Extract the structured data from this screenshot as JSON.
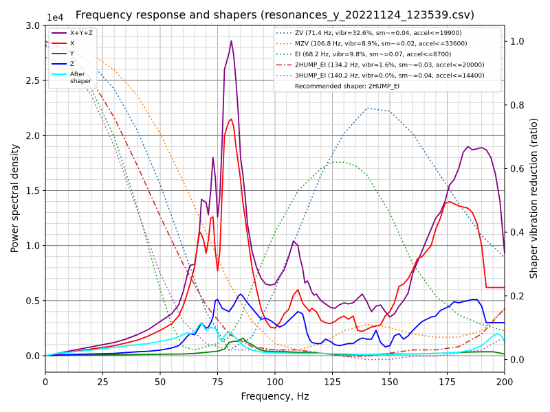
{
  "chart_data": {
    "type": "line",
    "title": "Frequency response and shapers (resonances_y_20221124_123539.csv)",
    "xlabel": "Frequency, Hz",
    "ylabel": "Power spectral density",
    "y2label": "Shaper vibration reduction (ratio)",
    "y_offset_text": "1e4",
    "xlim": [
      0,
      200
    ],
    "ylim": [
      -1500,
      30000
    ],
    "y2lim": [
      -0.04,
      1.05
    ],
    "x_ticks": [
      0,
      25,
      50,
      75,
      100,
      125,
      150,
      175,
      200
    ],
    "x_tick_labels": [
      "0",
      "25",
      "50",
      "75",
      "100",
      "125",
      "150",
      "175",
      "200"
    ],
    "y_ticks": [
      0,
      5000,
      10000,
      15000,
      20000,
      25000,
      30000
    ],
    "y_tick_labels": [
      "0.0",
      "0.5",
      "1.0",
      "1.5",
      "2.0",
      "2.5",
      "3.0"
    ],
    "y2_ticks": [
      0,
      0.2,
      0.4,
      0.6,
      0.8,
      1.0
    ],
    "y2_tick_labels": [
      "0.0",
      "0.2",
      "0.4",
      "0.6",
      "0.8",
      "1.0"
    ],
    "grid": true,
    "psd_legend_position": "upper-left",
    "shaper_legend_position": "upper-right",
    "psd_series": [
      {
        "name": "X+Y+Z",
        "color": "#800080",
        "x": [
          0,
          5,
          10,
          20,
          30,
          35,
          40,
          45,
          50,
          55,
          58,
          60,
          62,
          63,
          65,
          67,
          68,
          70,
          71,
          72,
          73,
          74,
          75,
          76,
          77,
          78,
          80,
          81,
          82,
          83,
          84,
          85,
          86,
          87,
          88,
          90,
          92,
          94,
          96,
          98,
          100,
          102,
          104,
          106,
          108,
          110,
          111,
          112,
          113,
          114,
          115,
          116,
          117,
          118,
          120,
          122,
          124,
          126,
          128,
          130,
          132,
          134,
          136,
          138,
          140,
          142,
          144,
          146,
          148,
          150,
          152,
          154,
          156,
          158,
          160,
          162,
          164,
          166,
          168,
          170,
          172,
          174,
          176,
          178,
          180,
          182,
          184,
          186,
          188,
          190,
          192,
          194,
          196,
          198,
          200
        ],
        "y": [
          0,
          200,
          400,
          800,
          1200,
          1500,
          1900,
          2400,
          3100,
          3800,
          4600,
          5800,
          7500,
          8200,
          8300,
          11000,
          14200,
          13900,
          12800,
          15000,
          18000,
          16200,
          12600,
          14500,
          19600,
          26000,
          27500,
          28600,
          27300,
          25000,
          22000,
          18000,
          16500,
          14500,
          12000,
          9500,
          8000,
          7000,
          6500,
          6400,
          6500,
          7200,
          7800,
          9000,
          10400,
          10000,
          8800,
          8000,
          6600,
          6800,
          6400,
          5800,
          5500,
          5600,
          5000,
          4700,
          4400,
          4300,
          4600,
          4800,
          4700,
          4800,
          5200,
          5600,
          4900,
          4000,
          4500,
          4600,
          4000,
          3500,
          3800,
          4500,
          5000,
          5700,
          7500,
          8500,
          9500,
          10500,
          11500,
          12500,
          13000,
          14000,
          15500,
          16000,
          17000,
          18500,
          19000,
          18700,
          18800,
          18900,
          18700,
          18000,
          16500,
          14000,
          9300
        ]
      },
      {
        "name": "X",
        "color": "#ff0000",
        "x": [
          0,
          5,
          10,
          20,
          30,
          40,
          45,
          50,
          55,
          58,
          60,
          62,
          63,
          65,
          67,
          68,
          69,
          70,
          71,
          72,
          73,
          74,
          75,
          76,
          77,
          78,
          79,
          80,
          81,
          82,
          83,
          84,
          85,
          86,
          87,
          88,
          90,
          92,
          94,
          96,
          98,
          100,
          102,
          104,
          106,
          108,
          110,
          112,
          113,
          114,
          115,
          116,
          118,
          120,
          122,
          124,
          126,
          128,
          130,
          132,
          134,
          136,
          138,
          140,
          142,
          144,
          146,
          148,
          150,
          152,
          154,
          156,
          158,
          160,
          162,
          164,
          166,
          168,
          170,
          172,
          174,
          176,
          178,
          180,
          182,
          184,
          186,
          188,
          190,
          192,
          194,
          196,
          198,
          200
        ],
        "y": [
          0,
          150,
          300,
          600,
          900,
          1400,
          1800,
          2300,
          2900,
          3600,
          4500,
          5800,
          6500,
          8100,
          11300,
          11000,
          10400,
          9300,
          10500,
          12500,
          12600,
          9500,
          7700,
          9500,
          15000,
          20000,
          20700,
          21300,
          21500,
          20800,
          19000,
          17500,
          16000,
          14000,
          12500,
          11000,
          8000,
          6000,
          4200,
          3200,
          2600,
          2500,
          3000,
          3800,
          4200,
          5500,
          6000,
          4800,
          4500,
          4300,
          4000,
          4300,
          4000,
          3200,
          3000,
          2900,
          3100,
          3400,
          3600,
          3300,
          3600,
          2300,
          2200,
          2400,
          2600,
          2700,
          2800,
          3600,
          4000,
          4800,
          6300,
          6500,
          7000,
          7800,
          8800,
          9000,
          9500,
          10000,
          11500,
          12500,
          13800,
          14000,
          13800,
          13600,
          13500,
          13400,
          13000,
          12000,
          10000,
          6200,
          6200,
          6200,
          6200,
          6200
        ]
      },
      {
        "name": "Y",
        "color": "#008000",
        "x": [
          0,
          20,
          40,
          60,
          65,
          70,
          75,
          78,
          80,
          82,
          84,
          86,
          88,
          90,
          92,
          94,
          96,
          98,
          100,
          105,
          110,
          115,
          120,
          125,
          130,
          140,
          150,
          160,
          170,
          180,
          190,
          195,
          200
        ],
        "y": [
          0,
          50,
          100,
          150,
          200,
          300,
          400,
          600,
          1200,
          1300,
          1300,
          1600,
          1200,
          1000,
          700,
          500,
          400,
          400,
          350,
          350,
          300,
          300,
          200,
          150,
          100,
          100,
          150,
          150,
          200,
          300,
          350,
          350,
          150
        ]
      },
      {
        "name": "Z",
        "color": "#0000ff",
        "x": [
          0,
          5,
          10,
          20,
          30,
          40,
          45,
          50,
          55,
          58,
          60,
          62,
          63,
          65,
          67,
          68,
          70,
          71,
          72,
          73,
          74,
          75,
          76,
          77,
          78,
          80,
          82,
          84,
          85,
          86,
          88,
          90,
          92,
          94,
          96,
          98,
          100,
          102,
          104,
          106,
          108,
          110,
          112,
          113,
          114,
          115,
          116,
          118,
          120,
          122,
          124,
          126,
          128,
          130,
          132,
          134,
          136,
          138,
          140,
          142,
          144,
          146,
          148,
          150,
          152,
          154,
          156,
          158,
          160,
          162,
          164,
          166,
          168,
          170,
          172,
          174,
          176,
          178,
          180,
          182,
          184,
          186,
          188,
          190,
          192,
          194,
          196,
          198,
          200
        ],
        "y": [
          0,
          50,
          100,
          150,
          200,
          350,
          400,
          500,
          700,
          900,
          1300,
          1800,
          2000,
          1900,
          2600,
          3000,
          2500,
          2600,
          3000,
          3500,
          5000,
          5100,
          4700,
          4300,
          4200,
          4000,
          4600,
          5400,
          5600,
          5400,
          4800,
          4300,
          3800,
          3300,
          3400,
          3200,
          2900,
          2600,
          2800,
          3200,
          3600,
          4000,
          3800,
          3000,
          2000,
          1500,
          1200,
          1100,
          1100,
          1500,
          1300,
          1000,
          900,
          1000,
          1100,
          1100,
          1400,
          1600,
          1500,
          1500,
          2300,
          1200,
          800,
          900,
          1800,
          2000,
          1500,
          1800,
          2300,
          2700,
          3100,
          3300,
          3500,
          3600,
          4100,
          4300,
          4500,
          4900,
          4800,
          4900,
          5000,
          5100,
          5100,
          4500,
          3000,
          3000,
          3000,
          3000,
          3000
        ]
      },
      {
        "name": "After\nshaper",
        "color": "#00ffff",
        "x": [
          0,
          5,
          10,
          20,
          30,
          40,
          45,
          50,
          55,
          58,
          60,
          62,
          63,
          65,
          67,
          68,
          70,
          71,
          72,
          73,
          74,
          75,
          76,
          77,
          78,
          80,
          82,
          84,
          86,
          88,
          90,
          92,
          95,
          100,
          110,
          120,
          130,
          140,
          150,
          160,
          170,
          180,
          185,
          190,
          195,
          197,
          199,
          200
        ],
        "y": [
          0,
          200,
          300,
          500,
          750,
          1000,
          1100,
          1300,
          1500,
          1700,
          1900,
          2100,
          2000,
          2100,
          2800,
          3000,
          2300,
          2400,
          2600,
          2500,
          2500,
          2000,
          1500,
          1400,
          1800,
          2200,
          1800,
          1400,
          900,
          700,
          500,
          400,
          300,
          250,
          200,
          200,
          150,
          100,
          100,
          150,
          200,
          300,
          500,
          900,
          1800,
          2000,
          1700,
          1200
        ]
      }
    ],
    "shaper_series": [
      {
        "name": "ZV (71.4 Hz, vibr=32.6%, sm~=0.04, accel<=19900)",
        "color": "#1f77b4",
        "x": [
          0,
          10,
          20,
          30,
          40,
          50,
          60,
          70,
          80,
          90,
          100,
          110,
          120,
          130,
          140,
          150,
          160,
          170,
          180,
          190,
          200
        ],
        "y": [
          0.985,
          0.98,
          0.93,
          0.85,
          0.72,
          0.55,
          0.35,
          0.15,
          0.03,
          0.07,
          0.22,
          0.4,
          0.58,
          0.71,
          0.79,
          0.78,
          0.71,
          0.6,
          0.49,
          0.39,
          0.32
        ]
      },
      {
        "name": "MZV (106.8 Hz, vibr=8.9%, sm~=0.02, accel<=33600)",
        "color": "#ff7f0e",
        "x": [
          0,
          10,
          20,
          30,
          40,
          50,
          60,
          70,
          80,
          90,
          100,
          110,
          120,
          130,
          140,
          150,
          160,
          170,
          180,
          190,
          200
        ],
        "y": [
          1.0,
          0.99,
          0.96,
          0.91,
          0.83,
          0.71,
          0.56,
          0.4,
          0.24,
          0.12,
          0.05,
          0.03,
          0.05,
          0.09,
          0.11,
          0.1,
          0.08,
          0.07,
          0.07,
          0.09,
          0.16
        ]
      },
      {
        "name": "EI (68.2 Hz, vibr=9.8%, sm~=0.07, accel<=8700)",
        "color": "#2ca02c",
        "x": [
          0,
          10,
          20,
          30,
          40,
          50,
          55,
          60,
          65,
          70,
          75,
          80,
          85,
          90,
          100,
          110,
          120,
          125,
          130,
          135,
          140,
          150,
          160,
          170,
          180,
          190,
          200
        ],
        "y": [
          0.95,
          0.92,
          0.85,
          0.7,
          0.48,
          0.22,
          0.11,
          0.04,
          0.03,
          0.04,
          0.05,
          0.07,
          0.13,
          0.23,
          0.4,
          0.53,
          0.6,
          0.62,
          0.62,
          0.61,
          0.58,
          0.46,
          0.3,
          0.2,
          0.14,
          0.11,
          0.09
        ]
      },
      {
        "name": "2HUMP_EI (134.2 Hz, vibr=1.6%, sm~=0.03, accel<=20000)",
        "color": "#d62728",
        "x": [
          0,
          10,
          20,
          30,
          40,
          50,
          60,
          70,
          80,
          90,
          100,
          110,
          120,
          130,
          140,
          150,
          160,
          170,
          180,
          190,
          200
        ],
        "y": [
          1.0,
          0.97,
          0.88,
          0.76,
          0.61,
          0.45,
          0.3,
          0.17,
          0.08,
          0.04,
          0.03,
          0.03,
          0.02,
          0.01,
          0.01,
          0.02,
          0.03,
          0.03,
          0.04,
          0.08,
          0.16
        ]
      },
      {
        "name": "3HUMP_EI (140.2 Hz, vibr=0.0%, sm~=0.04, accel<=14400)",
        "color": "#9467bd",
        "x": [
          0,
          10,
          20,
          30,
          40,
          50,
          60,
          70,
          80,
          90,
          100,
          110,
          120,
          130,
          140,
          150,
          160,
          170,
          180,
          190,
          200
        ],
        "y": [
          0.99,
          0.93,
          0.83,
          0.67,
          0.47,
          0.27,
          0.12,
          0.05,
          0.03,
          0.03,
          0.03,
          0.02,
          0.02,
          0.01,
          0.0,
          0.0,
          0.01,
          0.01,
          0.02,
          0.03,
          0.07
        ]
      }
    ],
    "recommended_text": "Recommended shaper: 2HUMP_EI"
  }
}
